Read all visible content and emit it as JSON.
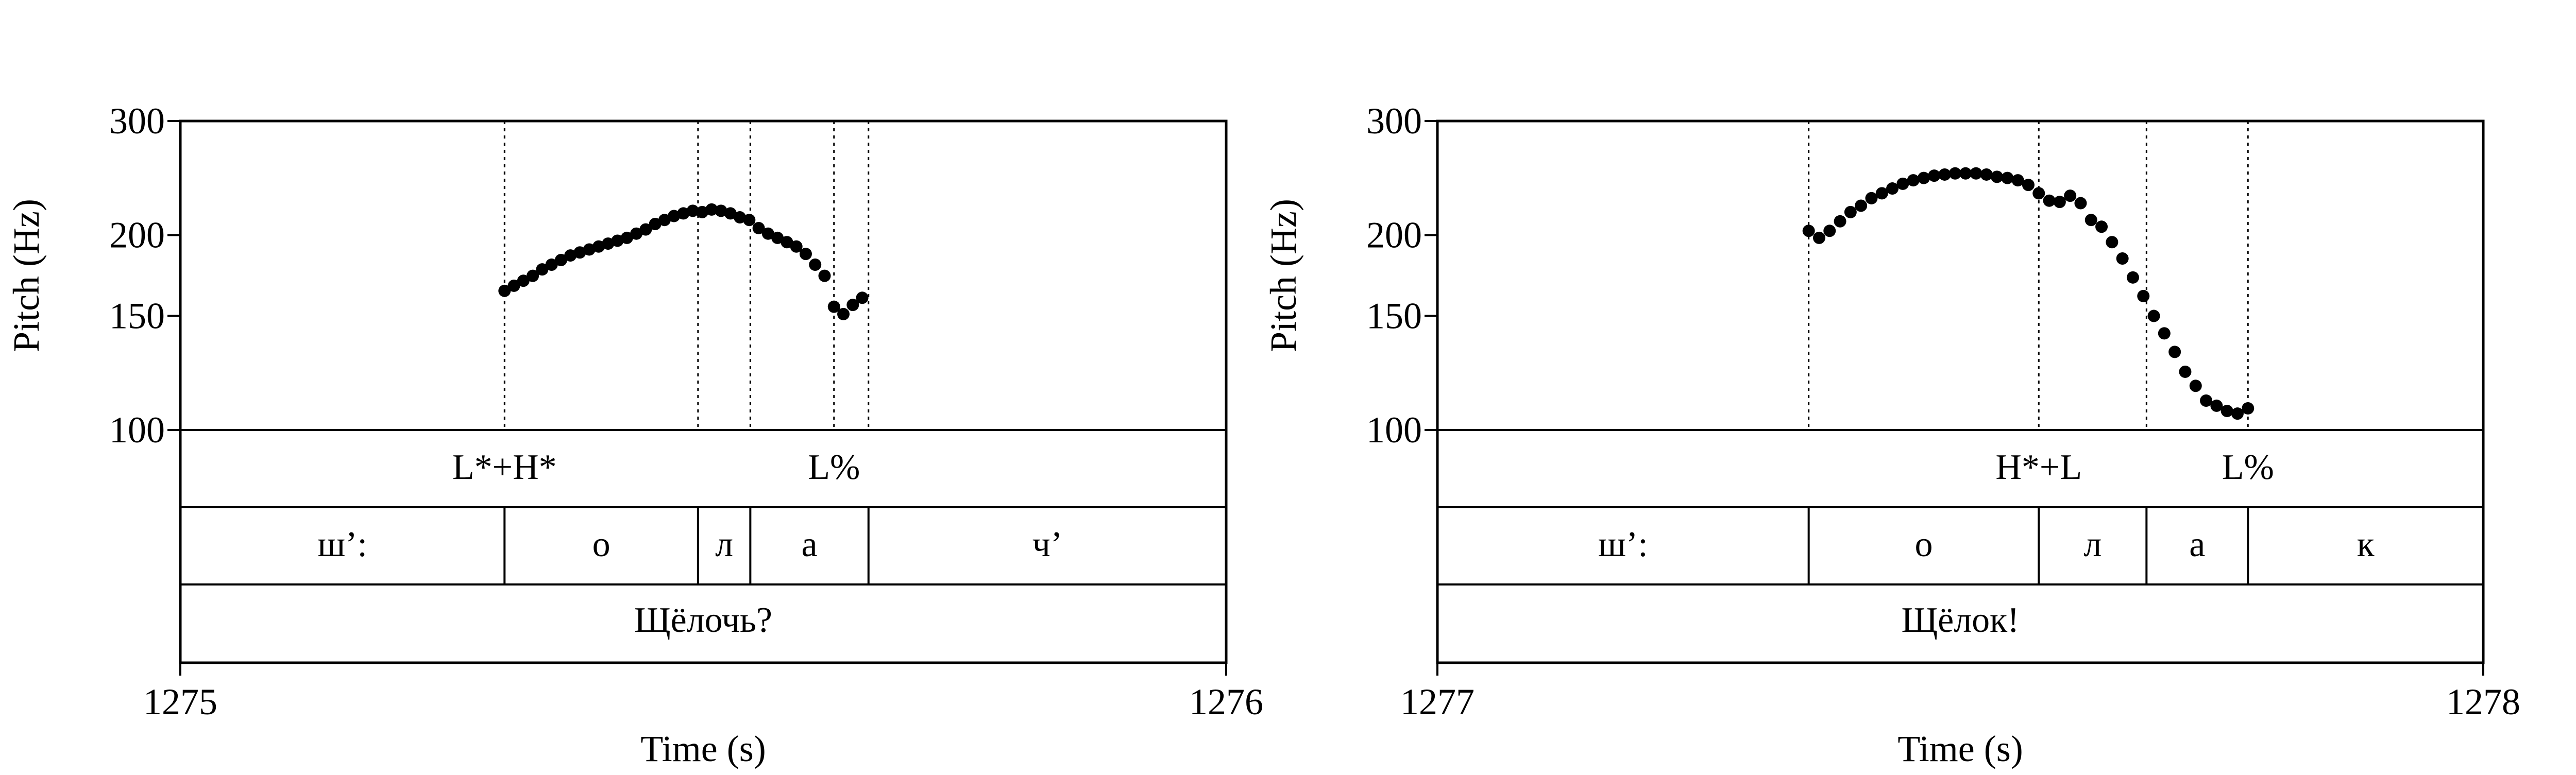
{
  "chart_data": [
    {
      "type": "scatter",
      "ylabel": "Pitch (Hz)",
      "xlabel": "Time (s)",
      "y_scale": "log",
      "ylim": [
        100,
        300
      ],
      "xlim": [
        1275,
        1276
      ],
      "y_ticks": [
        "300",
        "200",
        "150",
        "100"
      ],
      "y_tick_values": [
        300,
        200,
        150,
        100
      ],
      "x_tick_labels": [
        "1275",
        "1276"
      ],
      "boundaries": [
        1275.31,
        1275.495,
        1275.545,
        1275.625,
        1275.658
      ],
      "tone_labels": [
        {
          "t": 1275.31,
          "text": "L*+H*"
        },
        {
          "t": 1275.625,
          "text": "L%"
        }
      ],
      "segments": [
        {
          "from": 1275.0,
          "to": 1275.31,
          "text": "ш’:"
        },
        {
          "from": 1275.31,
          "to": 1275.495,
          "text": "о"
        },
        {
          "from": 1275.495,
          "to": 1275.545,
          "text": "л"
        },
        {
          "from": 1275.545,
          "to": 1275.658,
          "text": "а"
        },
        {
          "from": 1275.658,
          "to": 1276.0,
          "text": "ч’"
        }
      ],
      "word": "Щёлочь?",
      "x": [
        1275.31,
        1275.319,
        1275.328,
        1275.337,
        1275.346,
        1275.355,
        1275.364,
        1275.373,
        1275.382,
        1275.391,
        1275.4,
        1275.409,
        1275.418,
        1275.427,
        1275.436,
        1275.445,
        1275.454,
        1275.463,
        1275.472,
        1275.481,
        1275.49,
        1275.499,
        1275.508,
        1275.517,
        1275.526,
        1275.535,
        1275.544,
        1275.553,
        1275.562,
        1275.571,
        1275.58,
        1275.589,
        1275.598,
        1275.607,
        1275.616,
        1275.625,
        1275.634,
        1275.643,
        1275.652
      ],
      "values": [
        164,
        167,
        170,
        173,
        177,
        180,
        183,
        186,
        188,
        190,
        192,
        194,
        196,
        198,
        201,
        204,
        208,
        211,
        214,
        216,
        218,
        217,
        219,
        218,
        216,
        213,
        211,
        205,
        201,
        198,
        195,
        192,
        187,
        180,
        173,
        155,
        151,
        156,
        160
      ]
    },
    {
      "type": "scatter",
      "ylabel": "Pitch (Hz)",
      "xlabel": "Time (s)",
      "y_scale": "log",
      "ylim": [
        100,
        300
      ],
      "xlim": [
        1277,
        1278
      ],
      "y_ticks": [
        "300",
        "200",
        "150",
        "100"
      ],
      "y_tick_values": [
        300,
        200,
        150,
        100
      ],
      "x_tick_labels": [
        "1277",
        "1278"
      ],
      "boundaries": [
        1277.355,
        1277.575,
        1277.678,
        1277.775
      ],
      "tone_labels": [
        {
          "t": 1277.575,
          "text": "H*+L"
        },
        {
          "t": 1277.775,
          "text": "L%"
        }
      ],
      "segments": [
        {
          "from": 1277.0,
          "to": 1277.355,
          "text": "ш’:"
        },
        {
          "from": 1277.355,
          "to": 1277.575,
          "text": "о"
        },
        {
          "from": 1277.575,
          "to": 1277.678,
          "text": "л"
        },
        {
          "from": 1277.678,
          "to": 1277.775,
          "text": "а"
        },
        {
          "from": 1277.775,
          "to": 1278.0,
          "text": "к"
        }
      ],
      "word": "Щёлок!",
      "x": [
        1277.355,
        1277.365,
        1277.375,
        1277.385,
        1277.395,
        1277.405,
        1277.415,
        1277.425,
        1277.435,
        1277.445,
        1277.455,
        1277.465,
        1277.475,
        1277.485,
        1277.495,
        1277.505,
        1277.515,
        1277.525,
        1277.535,
        1277.545,
        1277.555,
        1277.565,
        1277.575,
        1277.585,
        1277.595,
        1277.605,
        1277.615,
        1277.625,
        1277.635,
        1277.645,
        1277.655,
        1277.665,
        1277.675,
        1277.685,
        1277.695,
        1277.705,
        1277.715,
        1277.725,
        1277.735,
        1277.745,
        1277.755,
        1277.765,
        1277.775
      ],
      "values": [
        203,
        198,
        203,
        210,
        217,
        222,
        228,
        232,
        236,
        240,
        243,
        245,
        247,
        248,
        249,
        249,
        249,
        248,
        246,
        245,
        243,
        239,
        232,
        226,
        225,
        230,
        224,
        211,
        206,
        195,
        184,
        172,
        161,
        150,
        141,
        132,
        123,
        117,
        111,
        109,
        107,
        106,
        108
      ]
    }
  ]
}
